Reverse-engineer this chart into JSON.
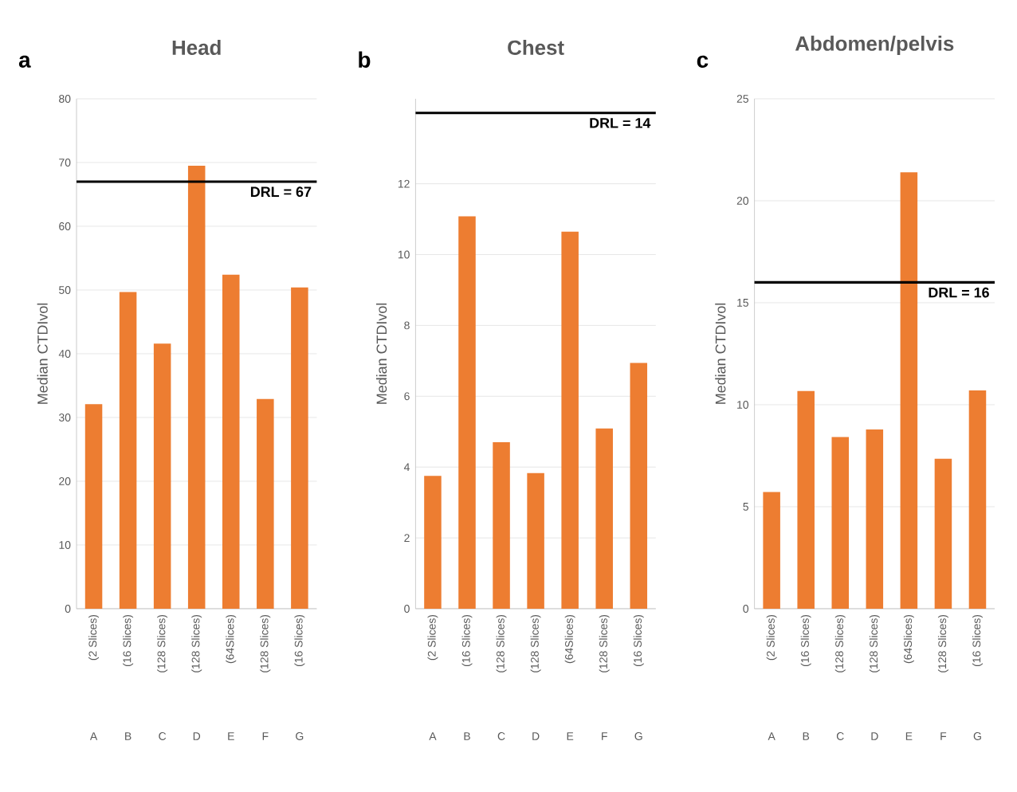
{
  "chart_data": [
    {
      "type": "bar",
      "title": "Head",
      "ylabel": "Median CTDIvol",
      "categories": [
        "(2 Slices)",
        "(16 Slices)",
        "(128 Slices)",
        "(128 Slices)",
        "(64Slices)",
        "(128 Slices)",
        "(16 Slices)"
      ],
      "values": [
        32.1,
        49.7,
        41.6,
        69.5,
        52.4,
        32.9,
        50.4
      ],
      "color": "#ed7d31",
      "ylim": [
        0,
        80
      ],
      "yticks": [
        0,
        10,
        20,
        30,
        40,
        50,
        60,
        70,
        80
      ],
      "grid": "y",
      "ref_lines": [
        {
          "axis": "y",
          "value": 67,
          "label": "DRL = 67",
          "color": "#000000"
        }
      ],
      "annotations": [
        "a",
        "A",
        "B",
        "C",
        "D",
        "E",
        "F",
        "G"
      ]
    },
    {
      "type": "bar",
      "title": "Chest",
      "ylabel": "Median CTDIvol",
      "categories": [
        "(2 Slices)",
        "(16 Slices)",
        "(128 Slices)",
        "(128 Slices)",
        "(64Slices)",
        "(128 Slices)",
        "(16 Slices)"
      ],
      "values": [
        3.75,
        11.08,
        4.7,
        3.83,
        10.65,
        5.09,
        6.94
      ],
      "color": "#ed7d31",
      "ylim": [
        0,
        14.4
      ],
      "yticks": [
        0,
        2,
        4,
        6,
        8,
        10,
        12
      ],
      "grid": "y",
      "ref_lines": [
        {
          "axis": "y",
          "value": 14,
          "label": "DRL = 14",
          "color": "#000000"
        }
      ],
      "annotations": [
        "b",
        "A",
        "B",
        "C",
        "D",
        "E",
        "F",
        "G"
      ]
    },
    {
      "type": "bar",
      "title": "Abdomen/pelvis",
      "ylabel": "Median CTDIvol",
      "categories": [
        "(2 Slices)",
        "(16 Slices)",
        "(128 Slices)",
        "(128 Slices)",
        "(64Slices)",
        "(128 Slices)",
        "(16 Slices)"
      ],
      "values": [
        5.72,
        10.67,
        8.42,
        8.79,
        21.4,
        7.35,
        10.7
      ],
      "color": "#ed7d31",
      "ylim": [
        0,
        25
      ],
      "yticks": [
        0,
        5,
        10,
        15,
        20,
        25
      ],
      "grid": "y",
      "ref_lines": [
        {
          "axis": "y",
          "value": 16,
          "label": "DRL = 16",
          "color": "#000000"
        }
      ],
      "annotations": [
        "c",
        "A",
        "B",
        "C",
        "D",
        "E",
        "F",
        "G"
      ]
    }
  ]
}
